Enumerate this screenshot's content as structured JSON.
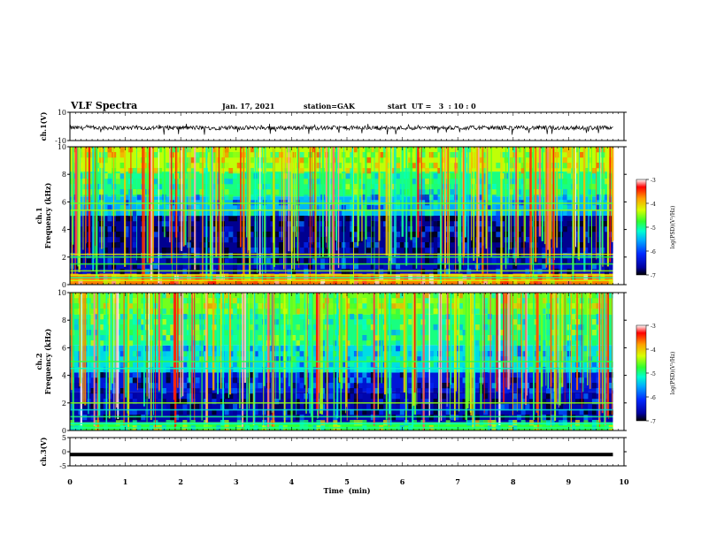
{
  "header": {
    "title": "VLF Spectra",
    "date": "Jan. 17, 2021",
    "station": "station=GAK",
    "start_ut": "start  UT =   3  : 10 : 0"
  },
  "chart_data": [
    {
      "type": "line",
      "panel": "ch1-waveform",
      "ylabel": "ch.1(V)",
      "ylim": [
        -10,
        10
      ],
      "y_ticks": [
        "10",
        "-10"
      ],
      "x": "time in minutes, 0 to 9.8",
      "series": [
        {
          "values_summary": "noisy waveform, baseline about -1 V, amplitude roughly 1 to 2 V with spikes to about -6 V"
        }
      ]
    },
    {
      "type": "heatmap",
      "panel": "ch1-spectrogram",
      "ylabel": "ch.1\nFrequency (kHz)",
      "ylim": [
        0,
        10
      ],
      "y_ticks": [
        "0",
        "2",
        "4",
        "6",
        "8",
        "10"
      ],
      "xlim": [
        0,
        10
      ],
      "data_xlim": [
        0,
        9.8
      ],
      "colorbar": {
        "label": "log(PSD)(V²/Hz)",
        "range": [
          -7,
          -3
        ],
        "ticks": [
          "-3",
          "-4",
          "-5",
          "-6",
          "-7"
        ]
      },
      "bands_kHz": [
        {
          "range": [
            0,
            0.8
          ],
          "level": -3.8
        },
        {
          "range": [
            0.8,
            2.2
          ],
          "level": -6.4
        },
        {
          "range": [
            2.2,
            5.0
          ],
          "level": -6.6
        },
        {
          "range": [
            5.0,
            6.4
          ],
          "level": -5.6
        },
        {
          "range": [
            6.4,
            8.2
          ],
          "level": -5.0
        },
        {
          "range": [
            8.2,
            10.0
          ],
          "level": -4.4
        }
      ],
      "lines_kHz": [
        0.3,
        0.5,
        0.7,
        1.0,
        1.5,
        2.0,
        2.2,
        5.4,
        5.9
      ]
    },
    {
      "type": "heatmap",
      "panel": "ch2-spectrogram",
      "ylabel": "ch.2\nFrequency (kHz)",
      "ylim": [
        0,
        10
      ],
      "y_ticks": [
        "0",
        "2",
        "4",
        "6",
        "8",
        "10"
      ],
      "xlim": [
        0,
        10
      ],
      "data_xlim": [
        0,
        9.8
      ],
      "colorbar": {
        "label": "log(PSD)(V²/Hz)",
        "range": [
          -7,
          -3
        ],
        "ticks": [
          "-3",
          "-4",
          "-5",
          "-6",
          "-7"
        ]
      },
      "bands_kHz": [
        {
          "range": [
            0,
            0.6
          ],
          "level": -4.8
        },
        {
          "range": [
            0.6,
            2.8
          ],
          "level": -6.5
        },
        {
          "range": [
            2.8,
            4.2
          ],
          "level": -6.3
        },
        {
          "range": [
            4.2,
            6.2
          ],
          "level": -5.4
        },
        {
          "range": [
            6.2,
            8.4
          ],
          "level": -5.0
        },
        {
          "range": [
            8.4,
            10.0
          ],
          "level": -4.6
        }
      ],
      "lines_kHz": [
        0.2,
        0.5,
        1.0,
        1.5,
        2.0,
        4.5,
        5.0
      ]
    },
    {
      "type": "line",
      "panel": "ch3-waveform",
      "ylabel": "ch.3(V)",
      "ylim": [
        -5,
        5
      ],
      "y_ticks": [
        "5",
        "0",
        "-5"
      ],
      "xlabel": "Time  (min)",
      "xlim": [
        0,
        10
      ],
      "x_ticks": [
        "0",
        "1",
        "2",
        "3",
        "4",
        "5",
        "6",
        "7",
        "8",
        "9",
        "10"
      ],
      "series": [
        {
          "values_summary": "constant at about -1 V from 0 to 9.8 min"
        }
      ]
    }
  ],
  "colors": {
    "colormap": [
      "#000000",
      "#0000a0",
      "#0028ff",
      "#00aaff",
      "#00ffd0",
      "#30ff30",
      "#d8ff00",
      "#ffa000",
      "#ff0000",
      "#ffffff"
    ]
  }
}
